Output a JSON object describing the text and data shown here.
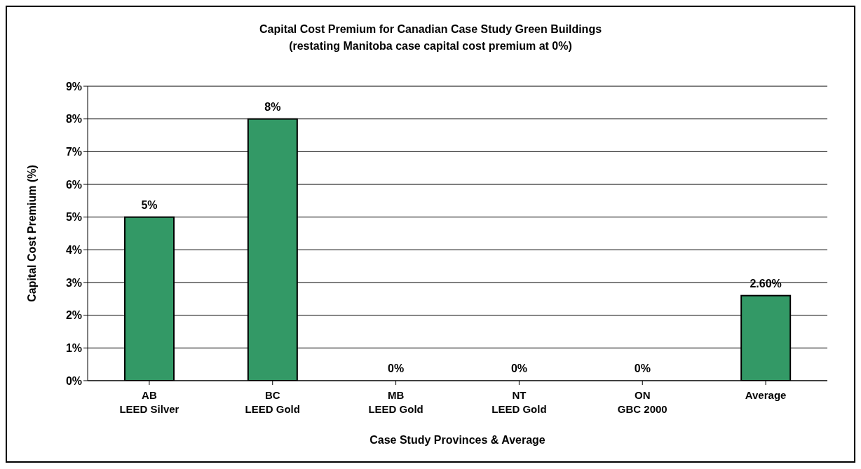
{
  "chart_data": {
    "type": "bar",
    "title": "Capital Cost Premium for Canadian Case Study Green Buildings\n(restating Manitoba case capital cost premium at 0%)",
    "xlabel": "Case Study Provinces & Average",
    "ylabel": "Capital Cost Premium (%)",
    "categories": [
      "AB\nLEED Silver",
      "BC\nLEED Gold",
      "MB\nLEED Gold",
      "NT\nLEED Gold",
      "ON\nGBC 2000",
      "Average"
    ],
    "values": [
      5,
      8,
      0,
      0,
      0,
      2.6
    ],
    "value_labels": [
      "5%",
      "8%",
      "0%",
      "0%",
      "0%",
      "2.60%"
    ],
    "color": "#339966",
    "ylim": [
      0,
      9
    ],
    "yticks": [
      {
        "value": 0,
        "label": "0%"
      },
      {
        "value": 1,
        "label": "1%"
      },
      {
        "value": 2,
        "label": "2%"
      },
      {
        "value": 3,
        "label": "3%"
      },
      {
        "value": 4,
        "label": "4%"
      },
      {
        "value": 5,
        "label": "5%"
      },
      {
        "value": 6,
        "label": "6%"
      },
      {
        "value": 7,
        "label": "7%"
      },
      {
        "value": 8,
        "label": "8%"
      },
      {
        "value": 9,
        "label": "9%"
      }
    ],
    "grid": "y",
    "legend": false
  }
}
